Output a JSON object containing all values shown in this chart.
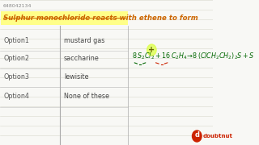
{
  "id_text": "648042134",
  "question": "Sulphur monochloride reacts with ethene to form",
  "options": [
    {
      "label": "Option1",
      "text": "mustard gas"
    },
    {
      "label": "Option2",
      "text": "saccharine"
    },
    {
      "label": "Option3",
      "text": "lewisite"
    },
    {
      "label": "Option4",
      "text": "None of these"
    }
  ],
  "bg_color": "#f8f8f5",
  "line_color": "#d8d8cc",
  "question_bg": "#ffff88",
  "question_color": "#cc6600",
  "option_label_color": "#555555",
  "option_text_color": "#444444",
  "equation_color": "#006600",
  "equation_color2": "#cc2200",
  "id_color": "#888888",
  "doubtnut_red": "#cc2200",
  "divider_color": "#aaaaaa",
  "circle_color": "#ddff44"
}
